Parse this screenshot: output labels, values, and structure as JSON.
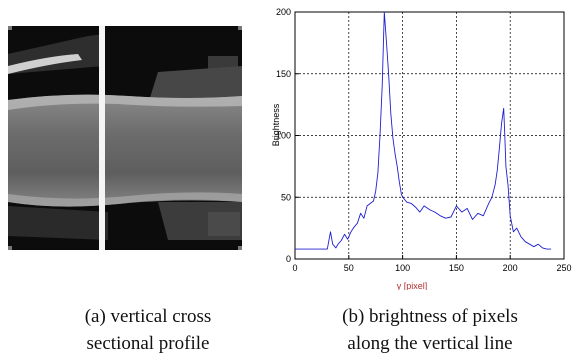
{
  "captions": {
    "a_line1": "(a) vertical cross",
    "a_line2": "sectional profile",
    "b_line1": "(b) brightness of pixels",
    "b_line2": "along the vertical line"
  },
  "colors": {
    "series": "#1f1fd0",
    "axis": "#000000",
    "xlabel": "#b03030"
  },
  "chart_data": {
    "type": "line",
    "title": "",
    "xlabel": "y [pixel]",
    "ylabel": "Brightness",
    "xlim": [
      0,
      250
    ],
    "ylim": [
      0,
      200
    ],
    "xticks": [
      0,
      50,
      100,
      150,
      200,
      250
    ],
    "yticks": [
      0,
      50,
      100,
      150,
      200
    ],
    "grid": true,
    "series": [
      {
        "x": [
          0,
          30,
          33,
          35,
          38,
          40,
          43,
          46,
          49,
          52,
          55,
          58,
          61,
          64,
          67,
          70,
          73,
          75,
          77,
          79,
          81,
          83,
          85,
          87,
          89,
          91,
          93,
          95,
          97,
          99,
          101,
          104,
          108,
          112,
          116,
          120,
          125,
          130,
          135,
          140,
          145,
          150,
          155,
          160,
          165,
          170,
          175,
          180,
          183,
          186,
          188,
          190,
          192,
          194,
          195,
          196,
          198,
          200,
          203,
          206,
          210,
          214,
          218,
          222,
          226,
          230,
          234,
          238
        ],
        "y": [
          8,
          8,
          22,
          12,
          9,
          12,
          15,
          20,
          16,
          22,
          26,
          29,
          37,
          33,
          43,
          45,
          47,
          55,
          70,
          100,
          140,
          200,
          175,
          150,
          118,
          98,
          85,
          75,
          62,
          52,
          49,
          46,
          45,
          42,
          38,
          43,
          40,
          38,
          35,
          33,
          34,
          43,
          38,
          41,
          32,
          37,
          35,
          45,
          50,
          60,
          72,
          90,
          110,
          122,
          100,
          75,
          60,
          35,
          22,
          25,
          18,
          14,
          12,
          10,
          12,
          9,
          8,
          8
        ]
      }
    ]
  }
}
